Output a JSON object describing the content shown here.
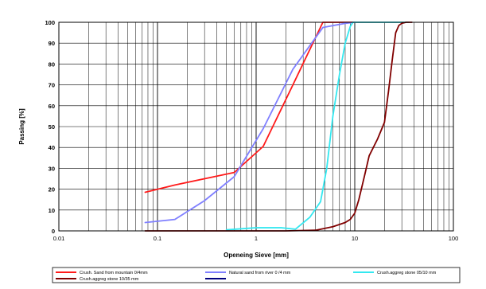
{
  "chart_data": {
    "type": "line",
    "x_scale": "log",
    "xlim": [
      0.01,
      100
    ],
    "ylim": [
      0,
      100
    ],
    "grid": true,
    "xlabel": "Openeing Sieve [mm]",
    "ylabel": "Passing [%]",
    "x_ticks": [
      {
        "value": 0.01,
        "label": "0.01"
      },
      {
        "value": 0.1,
        "label": "0.1"
      },
      {
        "value": 1,
        "label": "1"
      },
      {
        "value": 10,
        "label": "10"
      },
      {
        "value": 100,
        "label": "100"
      }
    ],
    "y_ticks": [
      0,
      10,
      20,
      30,
      40,
      50,
      60,
      70,
      80,
      90,
      100
    ],
    "legend_position": "bottom",
    "series": [
      {
        "name": "Crush. Sand from mountain 0/4mm",
        "color": "#ff1a1a",
        "x": [
          0.075,
          0.15,
          0.3,
          0.6,
          1.18,
          2.36,
          4.75,
          10
        ],
        "y": [
          18.5,
          22,
          25,
          28,
          40.5,
          70,
          100,
          100
        ]
      },
      {
        "name": "Natural sand from river 0 /4 mm",
        "color": "#8080ff",
        "x": [
          0.075,
          0.15,
          0.3,
          0.6,
          1.18,
          2.36,
          4.75,
          8,
          10
        ],
        "y": [
          4,
          5.5,
          14.5,
          26,
          49,
          77.5,
          97.5,
          99.5,
          100
        ]
      },
      {
        "name": "Crush.aggreg stone 05/10 mm",
        "color": "#33e8f0",
        "x": [
          0.5,
          1,
          1.8,
          2.5,
          3.5,
          4.5,
          5.2,
          6,
          7,
          8,
          9,
          9.6,
          11,
          20,
          35
        ],
        "y": [
          0.5,
          1.5,
          1.5,
          0.8,
          6.5,
          14,
          30,
          55,
          75,
          90,
          98,
          100,
          100,
          100,
          100
        ]
      },
      {
        "name": "Crush.aggreg stone 10/35 mm",
        "color": "#800000",
        "x": [
          0.075,
          2,
          4,
          6,
          8,
          9,
          10,
          11,
          12.5,
          14,
          17,
          20,
          22,
          24,
          26,
          28,
          30,
          33,
          38
        ],
        "y": [
          0,
          0,
          0.3,
          2,
          4,
          5.5,
          8.5,
          15,
          26,
          36,
          44,
          52,
          67,
          82,
          95,
          98.5,
          99.5,
          100,
          100
        ]
      },
      {
        "name": "",
        "color": "#000080",
        "x": [],
        "y": []
      }
    ]
  }
}
